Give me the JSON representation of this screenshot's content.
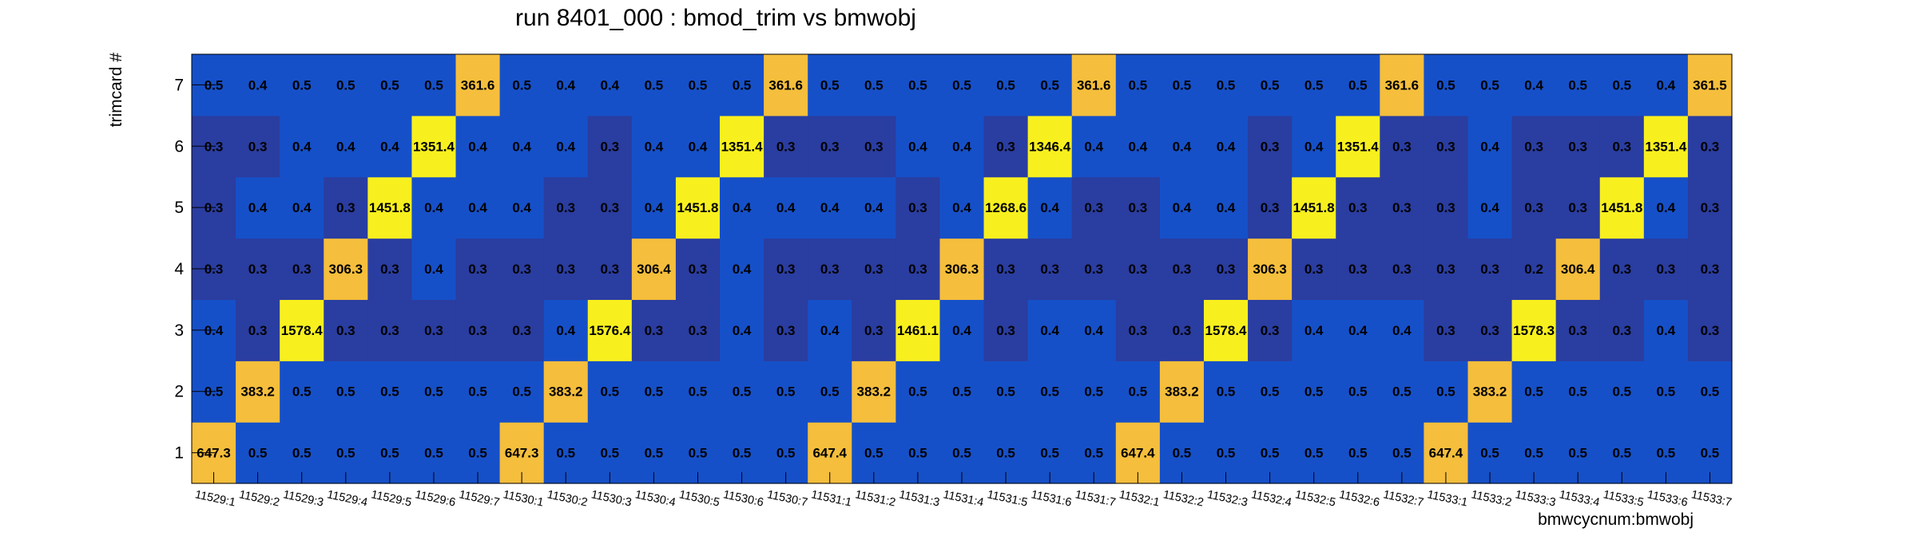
{
  "chart_data": {
    "type": "heatmap",
    "title": "run 8401_000 : bmod_trim vs bmwobj",
    "xlabel": "bmwcycnum:bmwobj",
    "ylabel": "trimcard #",
    "x": [
      "11529:1",
      "11529:2",
      "11529:3",
      "11529:4",
      "11529:5",
      "11529:6",
      "11529:7",
      "11530:1",
      "11530:2",
      "11530:3",
      "11530:4",
      "11530:5",
      "11530:6",
      "11530:7",
      "11531:1",
      "11531:2",
      "11531:3",
      "11531:4",
      "11531:5",
      "11531:6",
      "11531:7",
      "11532:1",
      "11532:2",
      "11532:3",
      "11532:4",
      "11532:5",
      "11532:6",
      "11532:7",
      "11533:1",
      "11533:2",
      "11533:3",
      "11533:4",
      "11533:5",
      "11533:6",
      "11533:7"
    ],
    "y": [
      "1",
      "2",
      "3",
      "4",
      "5",
      "6",
      "7"
    ],
    "values": [
      [
        647.3,
        0.5,
        0.5,
        0.5,
        0.5,
        0.5,
        0.5,
        647.3,
        0.5,
        0.5,
        0.5,
        0.5,
        0.5,
        0.5,
        647.4,
        0.5,
        0.5,
        0.5,
        0.5,
        0.5,
        0.5,
        647.4,
        0.5,
        0.5,
        0.5,
        0.5,
        0.5,
        0.5,
        647.4,
        0.5,
        0.5,
        0.5,
        0.5,
        0.5,
        0.5
      ],
      [
        0.5,
        383.2,
        0.5,
        0.5,
        0.5,
        0.5,
        0.5,
        0.5,
        383.2,
        0.5,
        0.5,
        0.5,
        0.5,
        0.5,
        0.5,
        383.2,
        0.5,
        0.5,
        0.5,
        0.5,
        0.5,
        0.5,
        383.2,
        0.5,
        0.5,
        0.5,
        0.5,
        0.5,
        0.5,
        383.2,
        0.5,
        0.5,
        0.5,
        0.5,
        0.5
      ],
      [
        0.4,
        0.3,
        1578.4,
        0.3,
        0.3,
        0.3,
        0.3,
        0.3,
        0.4,
        1576.4,
        0.3,
        0.3,
        0.4,
        0.3,
        0.4,
        0.3,
        1461.1,
        0.4,
        0.3,
        0.4,
        0.4,
        0.3,
        0.3,
        1578.4,
        0.3,
        0.4,
        0.4,
        0.4,
        0.3,
        0.3,
        1578.3,
        0.3,
        0.3,
        0.4,
        0.3
      ],
      [
        0.3,
        0.3,
        0.3,
        306.3,
        0.3,
        0.4,
        0.3,
        0.3,
        0.3,
        0.3,
        306.4,
        0.3,
        0.4,
        0.3,
        0.3,
        0.3,
        0.3,
        306.3,
        0.3,
        0.3,
        0.3,
        0.3,
        0.3,
        0.3,
        306.3,
        0.3,
        0.3,
        0.3,
        0.3,
        0.3,
        0.2,
        306.4,
        0.3,
        0.3,
        0.3
      ],
      [
        0.3,
        0.4,
        0.4,
        0.3,
        1451.8,
        0.4,
        0.4,
        0.4,
        0.3,
        0.3,
        0.4,
        1451.8,
        0.4,
        0.4,
        0.4,
        0.4,
        0.3,
        0.4,
        1268.6,
        0.4,
        0.3,
        0.3,
        0.4,
        0.4,
        0.3,
        1451.8,
        0.3,
        0.3,
        0.3,
        0.4,
        0.3,
        0.3,
        1451.8,
        0.4,
        0.3
      ],
      [
        0.3,
        0.3,
        0.4,
        0.4,
        0.4,
        1351.4,
        0.4,
        0.4,
        0.4,
        0.3,
        0.4,
        0.4,
        1351.4,
        0.3,
        0.3,
        0.3,
        0.4,
        0.4,
        0.3,
        1346.4,
        0.4,
        0.4,
        0.4,
        0.4,
        0.3,
        0.4,
        1351.4,
        0.3,
        0.3,
        0.4,
        0.3,
        0.3,
        0.3,
        1351.4,
        0.3
      ],
      [
        0.5,
        0.4,
        0.5,
        0.5,
        0.5,
        0.5,
        361.6,
        0.5,
        0.4,
        0.4,
        0.5,
        0.5,
        0.5,
        361.6,
        0.5,
        0.5,
        0.5,
        0.5,
        0.5,
        0.5,
        361.6,
        0.5,
        0.5,
        0.5,
        0.5,
        0.5,
        0.5,
        361.6,
        0.5,
        0.5,
        0.4,
        0.5,
        0.5,
        0.4,
        361.5
      ]
    ],
    "colors": {
      "low_0_2": "#2a3da0",
      "low_0_3": "#2a3da0",
      "low_0_4": "#1650c8",
      "low_0_5": "#1650c8",
      "mid": "#f5be3c",
      "high": "#f8f01e"
    },
    "grid": false,
    "legend": "none"
  }
}
